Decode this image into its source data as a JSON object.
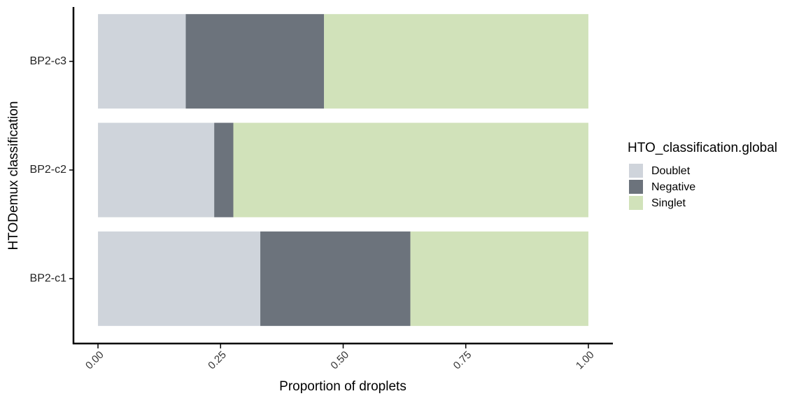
{
  "chart_data": {
    "type": "stacked_barh",
    "categories": [
      "BP2-c1",
      "BP2-c2",
      "BP2-c3"
    ],
    "series": [
      {
        "name": "Doublet",
        "color": "#cfd4db",
        "values": [
          0.331,
          0.237,
          0.179
        ]
      },
      {
        "name": "Negative",
        "color": "#6c737c",
        "values": [
          0.306,
          0.039,
          0.282
        ]
      },
      {
        "name": "Singlet",
        "color": "#d1e2ba",
        "values": [
          0.363,
          0.724,
          0.539
        ]
      }
    ],
    "xlabel": "Proportion of droplets",
    "ylabel": "HTODemux classification",
    "legend_title": "HTO_classification.global",
    "legend": "right",
    "xlim": [
      -0.05,
      1.05
    ],
    "xticks": [
      {
        "value": 0,
        "label": "0.00"
      },
      {
        "value": 0.25,
        "label": "0.25"
      },
      {
        "value": 0.5,
        "label": "0.50"
      },
      {
        "value": 0.75,
        "label": "0.75"
      },
      {
        "value": 1,
        "label": "1.00"
      }
    ]
  }
}
